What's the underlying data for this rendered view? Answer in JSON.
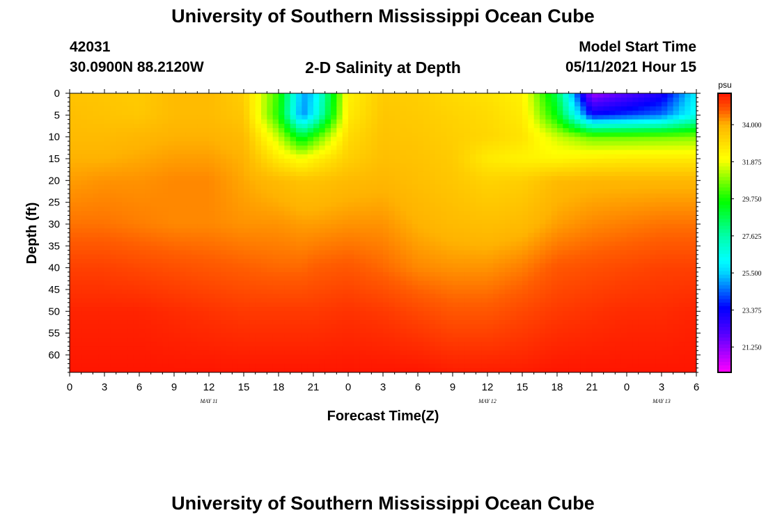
{
  "header": {
    "title": "University of Southern Mississippi Ocean Cube",
    "station_id": "42031",
    "station_coords": "30.0900N  88.2120W",
    "plot_title": "2-D Salinity at Depth",
    "model_label": "Model Start Time",
    "model_time": "05/11/2021 Hour 15"
  },
  "footer": {
    "title": "University of Southern Mississippi Ocean Cube"
  },
  "chart_data": {
    "type": "heatmap",
    "title": "2-D Salinity at Depth",
    "xlabel": "Forecast Time(Z)",
    "ylabel": "Depth (ft)",
    "x_tick_labels": [
      "0",
      "3",
      "6",
      "9",
      "12",
      "15",
      "18",
      "21",
      "0",
      "3",
      "6",
      "9",
      "12",
      "15",
      "18",
      "21",
      "0",
      "3",
      "6"
    ],
    "x_range_hours": [
      0,
      54
    ],
    "date_labels": [
      {
        "text": "MAY 11",
        "hour": 12
      },
      {
        "text": "MAY 12",
        "hour": 36
      },
      {
        "text": "MAY 13",
        "hour": 51
      }
    ],
    "y_tick_labels": [
      "0",
      "5",
      "10",
      "15",
      "20",
      "25",
      "30",
      "35",
      "40",
      "45",
      "50",
      "55",
      "60"
    ],
    "ylim": [
      0,
      64
    ],
    "colorbar": {
      "unit": "psu",
      "labels": [
        "34.000",
        "31.875",
        "29.750",
        "27.625",
        "25.500",
        "23.375",
        "21.250"
      ],
      "range": [
        19.8,
        35.8
      ]
    },
    "salinity_grid": {
      "hours": [
        0,
        3,
        6,
        9,
        12,
        15,
        18,
        20,
        21,
        24,
        27,
        30,
        33,
        36,
        39,
        42,
        45,
        48,
        51,
        54
      ],
      "depths": [
        0,
        5,
        10,
        15,
        20,
        30,
        40,
        50,
        64
      ],
      "values": [
        [
          33.6,
          33.5,
          33.4,
          33.8,
          33.8,
          33.3,
          30.0,
          25.0,
          25.5,
          32.4,
          33.4,
          33.3,
          33.0,
          32.8,
          32.4,
          28.6,
          21.0,
          22.0,
          23.0,
          26.0
        ],
        [
          33.7,
          33.6,
          33.5,
          33.8,
          33.8,
          33.5,
          29.8,
          24.7,
          26.0,
          32.6,
          33.5,
          33.4,
          33.2,
          33.0,
          32.6,
          29.4,
          23.5,
          24.0,
          24.5,
          26.5
        ],
        [
          33.8,
          33.8,
          33.9,
          34.0,
          34.0,
          33.8,
          31.4,
          29.0,
          30.0,
          33.0,
          33.6,
          33.5,
          33.3,
          33.1,
          32.8,
          31.5,
          30.6,
          30.6,
          30.7,
          30.8
        ],
        [
          34.0,
          34.0,
          34.1,
          34.2,
          34.2,
          34.0,
          32.6,
          32.0,
          32.4,
          33.3,
          33.7,
          33.6,
          33.4,
          32.6,
          32.4,
          32.3,
          32.5,
          32.6,
          32.6,
          32.6
        ],
        [
          34.2,
          34.3,
          34.3,
          34.4,
          34.4,
          34.1,
          33.8,
          33.6,
          33.6,
          33.8,
          33.9,
          33.7,
          33.5,
          33.2,
          33.3,
          33.8,
          33.9,
          33.9,
          33.9,
          33.9
        ],
        [
          34.6,
          34.6,
          34.5,
          34.4,
          34.4,
          34.3,
          34.3,
          34.2,
          34.2,
          34.3,
          34.3,
          34.0,
          33.8,
          33.7,
          33.8,
          34.2,
          34.4,
          34.5,
          34.6,
          34.6
        ],
        [
          35.2,
          35.2,
          35.1,
          35.0,
          34.9,
          34.8,
          34.7,
          34.7,
          34.8,
          34.9,
          34.7,
          34.4,
          34.3,
          34.3,
          34.5,
          34.9,
          35.0,
          35.1,
          35.2,
          35.2
        ],
        [
          35.6,
          35.6,
          35.6,
          35.5,
          35.4,
          35.3,
          35.3,
          35.3,
          35.3,
          35.4,
          35.3,
          35.1,
          34.9,
          34.9,
          35.1,
          35.3,
          35.4,
          35.5,
          35.5,
          35.6
        ],
        [
          35.8,
          35.8,
          35.8,
          35.8,
          35.8,
          35.8,
          35.8,
          35.8,
          35.8,
          35.8,
          35.8,
          35.8,
          35.7,
          35.7,
          35.7,
          35.8,
          35.8,
          35.8,
          35.8,
          35.8
        ]
      ]
    }
  }
}
